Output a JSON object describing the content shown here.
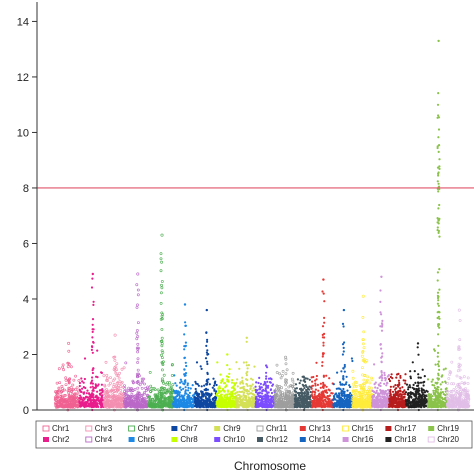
{
  "chart_data": {
    "type": "scatter",
    "title": "",
    "xlabel": "Chromosome",
    "ylabel": "",
    "ylim": [
      0,
      14.7
    ],
    "yticks": [
      0,
      2,
      4,
      6,
      8,
      10,
      12,
      14
    ],
    "threshold": {
      "value": 8,
      "color": "#e0556a"
    },
    "grid": false,
    "legend_position": "bottom",
    "series": [
      {
        "name": "Chr1",
        "color": "#f06292",
        "outline": true,
        "x_start": 0.55,
        "x_end": 0.75,
        "peak": 2.4
      },
      {
        "name": "Chr2",
        "color": "#e91e8c",
        "outline": false,
        "x_start": 0.75,
        "x_end": 0.95,
        "peak": 4.9
      },
      {
        "name": "Chr3",
        "color": "#f48fb1",
        "outline": true,
        "x_start": 0.95,
        "x_end": 1.12,
        "peak": 2.7
      },
      {
        "name": "Chr4",
        "color": "#ba68c8",
        "outline": true,
        "x_start": 1.12,
        "x_end": 1.32,
        "peak": 4.9
      },
      {
        "name": "Chr5",
        "color": "#4caf50",
        "outline": true,
        "x_start": 1.32,
        "x_end": 1.52,
        "peak": 6.3
      },
      {
        "name": "Chr6",
        "color": "#1e88e5",
        "outline": false,
        "x_start": 1.52,
        "x_end": 1.7,
        "peak": 3.8
      },
      {
        "name": "Chr7",
        "color": "#0d47a1",
        "outline": false,
        "x_start": 1.7,
        "x_end": 1.88,
        "peak": 3.6
      },
      {
        "name": "Chr8",
        "color": "#c6ff00",
        "outline": false,
        "x_start": 1.88,
        "x_end": 2.04,
        "peak": 2.0
      },
      {
        "name": "Chr9",
        "color": "#d4e157",
        "outline": false,
        "x_start": 2.04,
        "x_end": 2.2,
        "peak": 2.6
      },
      {
        "name": "Chr10",
        "color": "#7c4dff",
        "outline": false,
        "x_start": 2.2,
        "x_end": 2.36,
        "peak": 1.6
      },
      {
        "name": "Chr11",
        "color": "#9e9e9e",
        "outline": true,
        "x_start": 2.36,
        "x_end": 2.52,
        "peak": 1.9
      },
      {
        "name": "Chr12",
        "color": "#455a64",
        "outline": false,
        "x_start": 2.52,
        "x_end": 2.66,
        "peak": 1.2
      },
      {
        "name": "Chr13",
        "color": "#e53935",
        "outline": false,
        "x_start": 2.66,
        "x_end": 2.84,
        "peak": 4.7
      },
      {
        "name": "Chr14",
        "color": "#1565c0",
        "outline": false,
        "x_start": 2.84,
        "x_end": 3.0,
        "peak": 3.6
      },
      {
        "name": "Chr15",
        "color": "#ffeb3b",
        "outline": true,
        "x_start": 3.0,
        "x_end": 3.16,
        "peak": 4.1
      },
      {
        "name": "Chr16",
        "color": "#ce93d8",
        "outline": false,
        "x_start": 3.16,
        "x_end": 3.3,
        "peak": 4.8
      },
      {
        "name": "Chr17",
        "color": "#b71c1c",
        "outline": false,
        "x_start": 3.3,
        "x_end": 3.44,
        "peak": 1.3
      },
      {
        "name": "Chr18",
        "color": "#212121",
        "outline": false,
        "x_start": 3.44,
        "x_end": 3.62,
        "peak": 2.4
      },
      {
        "name": "Chr19",
        "color": "#8bc34a",
        "outline": false,
        "x_start": 3.62,
        "x_end": 3.78,
        "peak": 13.3
      },
      {
        "name": "Chr20",
        "color": "#e1bee7",
        "outline": true,
        "x_start": 3.78,
        "x_end": 3.96,
        "peak": 3.6
      }
    ]
  }
}
